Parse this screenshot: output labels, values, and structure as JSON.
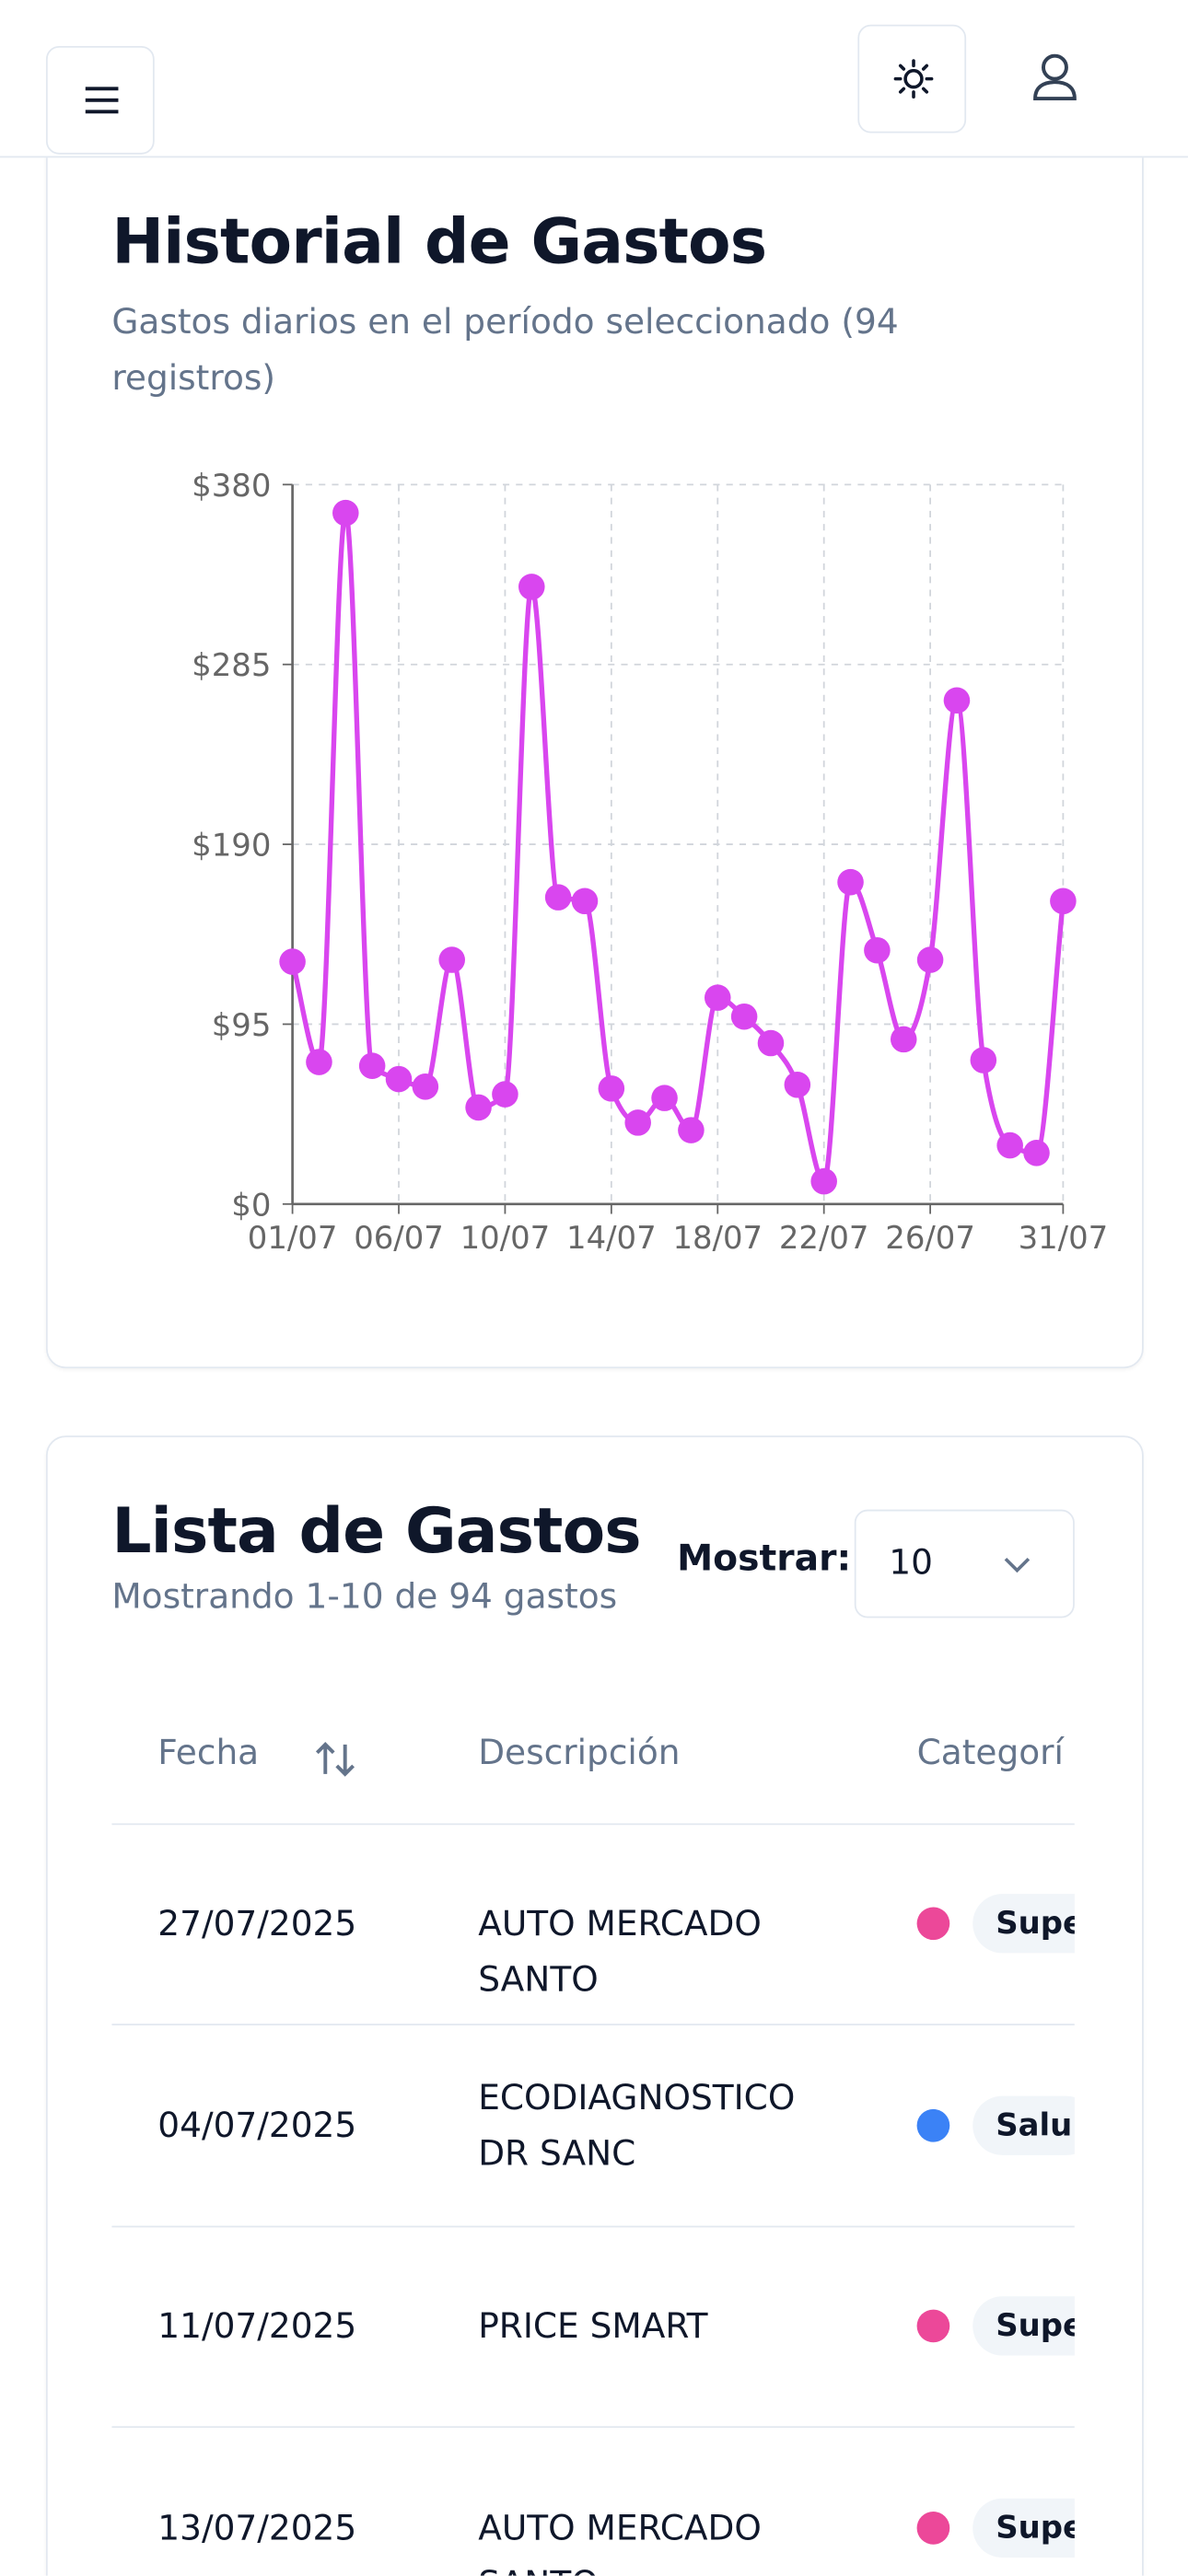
{
  "chart_data": {
    "type": "line",
    "title": "Historial de Gastos",
    "subtitle": "Gastos diarios en el período seleccionado (94 registros)",
    "categories": [
      "01/07",
      null,
      null,
      null,
      "06/07",
      null,
      null,
      null,
      "10/07",
      null,
      null,
      null,
      "14/07",
      null,
      null,
      null,
      "18/07",
      null,
      null,
      null,
      "22/07",
      null,
      null,
      null,
      "26/07",
      null,
      null,
      null,
      null,
      "31/07"
    ],
    "values": [
      128,
      75,
      365,
      73,
      66,
      62,
      129,
      51,
      58,
      326,
      162,
      160,
      61,
      43,
      56,
      39,
      109,
      99,
      85,
      63,
      12,
      170,
      134,
      87,
      129,
      266,
      76,
      31,
      27,
      160
    ],
    "color": "#d946ef",
    "ylim": [
      0,
      380
    ],
    "yticks": [
      {
        "value": 0,
        "label": "$0"
      },
      {
        "value": 95,
        "label": "$95"
      },
      {
        "value": 190,
        "label": "$190"
      },
      {
        "value": 285,
        "label": "$285"
      },
      {
        "value": 380,
        "label": "$380"
      }
    ],
    "grid": true
  },
  "list": {
    "title": "Lista de Gastos",
    "subtitle": "Mostrando 1-10 de 94 gastos",
    "show_label": "Mostrar:",
    "show_value": "10",
    "columns": [
      "Fecha",
      "Descripción",
      "Categorí"
    ],
    "rows": [
      {
        "date": "27/07/2025",
        "description": "AUTO MERCADO SANTO",
        "category": "Supe",
        "color": "#ec4899"
      },
      {
        "date": "04/07/2025",
        "description": "ECODIAGNOSTICO DR SANC",
        "category": "Salu",
        "color": "#3b82f6"
      },
      {
        "date": "11/07/2025",
        "description": "PRICE SMART",
        "category": "Supe",
        "color": "#ec4899"
      },
      {
        "date": "13/07/2025",
        "description": "AUTO MERCADO SANTO",
        "category": "Supe",
        "color": "#ec4899"
      }
    ]
  }
}
